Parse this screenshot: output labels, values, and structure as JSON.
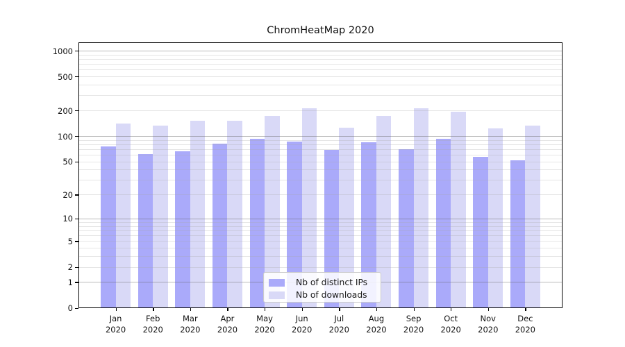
{
  "chart_data": {
    "type": "bar",
    "title": "ChromHeatMap 2020",
    "categories": [
      "Jan",
      "Feb",
      "Mar",
      "Apr",
      "May",
      "Jun",
      "Jul",
      "Aug",
      "Sep",
      "Oct",
      "Nov",
      "Dec"
    ],
    "year_label": "2020",
    "series": [
      {
        "name": "Nb of distinct IPs",
        "color": "#aaaafa",
        "values": [
          75,
          61,
          66,
          82,
          92,
          86,
          68,
          85,
          70,
          92,
          57,
          52
        ]
      },
      {
        "name": "Nb of downloads",
        "color": "#d9d9f7",
        "values": [
          140,
          132,
          151,
          151,
          172,
          213,
          125,
          172,
          213,
          192,
          124,
          132
        ]
      }
    ],
    "xlabel": "",
    "ylabel": "",
    "y_axis": {
      "scale": "log(x+1)",
      "tick_values": [
        0,
        1,
        2,
        5,
        10,
        20,
        50,
        100,
        200,
        500,
        1000
      ],
      "tick_labels": [
        "0",
        "1",
        "2",
        "5",
        "10",
        "20",
        "50",
        "100",
        "200",
        "500",
        "1000"
      ],
      "ylim": [
        0,
        1250
      ]
    },
    "grid": true,
    "legend_position": "lower center",
    "colors": {
      "major_gridline": "#b5b5b5",
      "minor_gridline": "#e8e8e8",
      "axis": "#000000",
      "text": "#111111"
    }
  }
}
